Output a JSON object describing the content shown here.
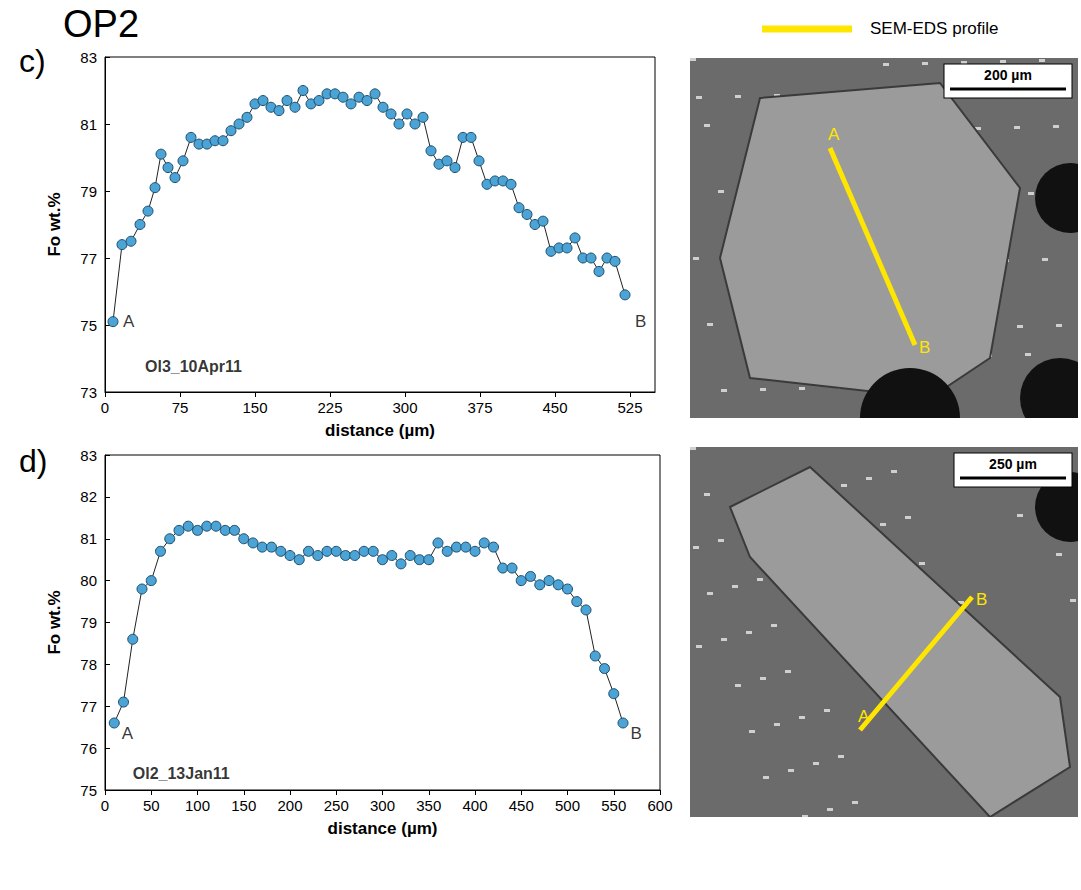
{
  "figure": {
    "title": "OP2",
    "image_legend": "SEM-EDS profile"
  },
  "images": [
    {
      "panel": "c",
      "scale_bar": "200 µm",
      "line_start": "A",
      "line_end": "B"
    },
    {
      "panel": "d",
      "scale_bar": "250 µm",
      "line_start": "A",
      "line_end": "B"
    }
  ],
  "chart_data": [
    {
      "type": "line",
      "panel": "c)",
      "x_label": "distance (µm)",
      "y_label": "Fo wt.%",
      "xlim": [
        0,
        550
      ],
      "xticks": [
        0,
        75,
        150,
        225,
        300,
        375,
        450,
        525
      ],
      "ylim": [
        73,
        83
      ],
      "yticks": [
        73,
        75,
        77,
        79,
        81,
        83
      ],
      "grid": false,
      "annotations": [
        {
          "text": "A",
          "x": 18,
          "y": 75.1
        },
        {
          "text": "B",
          "x": 530,
          "y": 75.1
        },
        {
          "text": "Ol3_10Apr11",
          "x": 40,
          "y": 73.75
        }
      ],
      "series": [
        {
          "name": "Ol3_10Apr11",
          "color": "#4ba3d6",
          "marker": "circle",
          "line_style": "solid",
          "x": [
            8,
            17,
            26,
            35,
            43,
            50,
            56,
            63,
            70,
            78,
            86,
            94,
            102,
            110,
            118,
            126,
            134,
            142,
            150,
            158,
            166,
            174,
            182,
            190,
            198,
            206,
            214,
            222,
            230,
            238,
            246,
            254,
            262,
            270,
            278,
            286,
            294,
            302,
            310,
            318,
            326,
            334,
            342,
            350,
            358,
            366,
            374,
            382,
            390,
            398,
            406,
            414,
            422,
            430,
            438,
            446,
            454,
            462,
            470,
            478,
            486,
            494,
            502,
            510,
            520
          ],
          "values": [
            75.1,
            77.4,
            77.5,
            78.0,
            78.4,
            79.1,
            80.1,
            79.7,
            79.4,
            79.9,
            80.6,
            80.4,
            80.4,
            80.5,
            80.5,
            80.8,
            81.0,
            81.2,
            81.6,
            81.7,
            81.5,
            81.4,
            81.7,
            81.5,
            82.0,
            81.6,
            81.7,
            81.9,
            81.9,
            81.8,
            81.6,
            81.8,
            81.7,
            81.9,
            81.5,
            81.3,
            81.0,
            81.3,
            81.0,
            81.2,
            80.2,
            79.8,
            79.9,
            79.7,
            80.6,
            80.6,
            79.9,
            79.2,
            79.3,
            79.3,
            79.2,
            78.5,
            78.3,
            78.0,
            78.1,
            77.2,
            77.3,
            77.3,
            77.6,
            77.0,
            77.0,
            76.6,
            77.0,
            76.9,
            75.9
          ]
        }
      ]
    },
    {
      "type": "line",
      "panel": "d)",
      "x_label": "distance (µm)",
      "y_label": "Fo wt.%",
      "xlim": [
        0,
        600
      ],
      "xticks": [
        0,
        50,
        100,
        150,
        200,
        250,
        300,
        350,
        400,
        450,
        500,
        550,
        600
      ],
      "ylim": [
        75,
        83
      ],
      "yticks": [
        75,
        76,
        77,
        78,
        79,
        80,
        81,
        82,
        83
      ],
      "grid": false,
      "annotations": [
        {
          "text": "A",
          "x": 18,
          "y": 76.35
        },
        {
          "text": "B",
          "x": 568,
          "y": 76.35
        },
        {
          "text": "Ol2_13Jan11",
          "x": 30,
          "y": 75.4
        }
      ],
      "series": [
        {
          "name": "Ol2_13Jan11",
          "color": "#4ba3d6",
          "marker": "circle",
          "line_style": "solid",
          "x": [
            10,
            20,
            30,
            40,
            50,
            60,
            70,
            80,
            90,
            100,
            110,
            120,
            130,
            140,
            150,
            160,
            170,
            180,
            190,
            200,
            210,
            220,
            230,
            240,
            250,
            260,
            270,
            280,
            290,
            300,
            310,
            320,
            330,
            340,
            350,
            360,
            370,
            380,
            390,
            400,
            410,
            420,
            430,
            440,
            450,
            460,
            470,
            480,
            490,
            500,
            510,
            520,
            530,
            540,
            550,
            560
          ],
          "values": [
            76.6,
            77.1,
            78.6,
            79.8,
            80.0,
            80.7,
            81.0,
            81.2,
            81.3,
            81.2,
            81.3,
            81.3,
            81.2,
            81.2,
            81.0,
            80.9,
            80.8,
            80.8,
            80.7,
            80.6,
            80.5,
            80.7,
            80.6,
            80.7,
            80.7,
            80.6,
            80.6,
            80.7,
            80.7,
            80.5,
            80.6,
            80.4,
            80.6,
            80.5,
            80.5,
            80.9,
            80.7,
            80.8,
            80.8,
            80.7,
            80.9,
            80.8,
            80.3,
            80.3,
            80.0,
            80.1,
            79.9,
            80.0,
            79.9,
            79.8,
            79.5,
            79.3,
            78.2,
            77.9,
            77.3,
            76.6
          ]
        }
      ]
    }
  ]
}
